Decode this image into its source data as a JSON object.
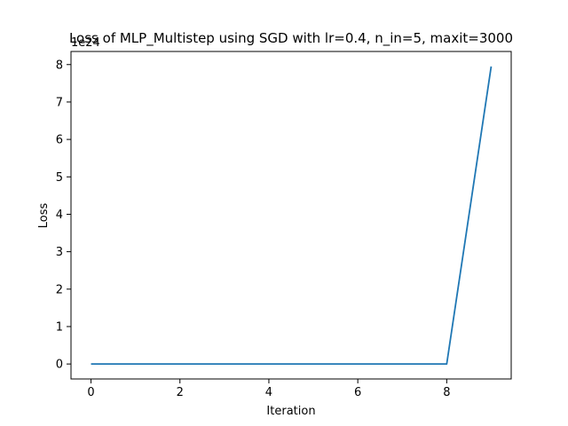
{
  "chart_data": {
    "type": "line",
    "title": "Loss of MLP_Multistep using SGD with lr=0.4, n_in=5, maxit=3000",
    "xlabel": "Iteration",
    "ylabel": "Loss",
    "y_offset_label": "1e24",
    "y_scale": 1e+24,
    "xlim": [
      -0.45,
      9.45
    ],
    "ylim": [
      -0.4,
      8.35
    ],
    "xticks": [
      0,
      2,
      4,
      6,
      8
    ],
    "xtick_labels": [
      "0",
      "2",
      "4",
      "6",
      "8"
    ],
    "yticks": [
      0,
      1,
      2,
      3,
      4,
      5,
      6,
      7,
      8
    ],
    "ytick_labels": [
      "0",
      "1",
      "2",
      "3",
      "4",
      "5",
      "6",
      "7",
      "8"
    ],
    "grid": false,
    "series": [
      {
        "x": [
          0,
          1,
          2,
          3,
          4,
          5,
          6,
          7,
          8,
          9
        ],
        "y": [
          0,
          0,
          0,
          0,
          0,
          0,
          0,
          0,
          0,
          7.95
        ],
        "color": "#1f77b4"
      }
    ]
  }
}
